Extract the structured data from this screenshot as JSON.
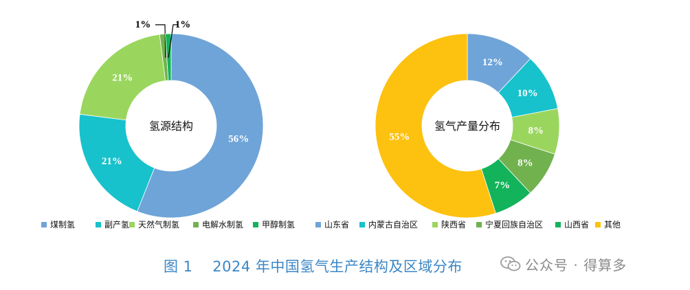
{
  "chart_data": [
    {
      "type": "donut",
      "center_label": "氢源结构",
      "categories": [
        "煤制氢",
        "副产氢",
        "天然气制氢",
        "电解水制氢",
        "甲醇制氢"
      ],
      "values": [
        56,
        21,
        21,
        1,
        1
      ],
      "value_labels": [
        "56%",
        "21%",
        "21%",
        "1%",
        "1%"
      ],
      "colors": [
        "#6fa4d8",
        "#17c2cc",
        "#9ad65e",
        "#71b24f",
        "#12b35a"
      ],
      "legend_position": "bottom"
    },
    {
      "type": "donut",
      "center_label": "氢气产量分布",
      "categories": [
        "山东省",
        "内蒙古自治区",
        "陕西省",
        "宁夏回族自治区",
        "山西省",
        "其他"
      ],
      "values": [
        12,
        10,
        8,
        8,
        7,
        55
      ],
      "value_labels": [
        "12%",
        "10%",
        "8%",
        "8%",
        "7%",
        "55%"
      ],
      "colors": [
        "#6fa4d8",
        "#17c2cc",
        "#9ad65e",
        "#71b24f",
        "#12b35a",
        "#fdc10f"
      ],
      "legend_position": "bottom"
    }
  ],
  "caption": {
    "figure_no": "图 1",
    "title": "2024 年中国氢气生产结构及区域分布"
  },
  "watermark": {
    "icon": "wechat-icon",
    "text": "公众号 · 得算多"
  }
}
